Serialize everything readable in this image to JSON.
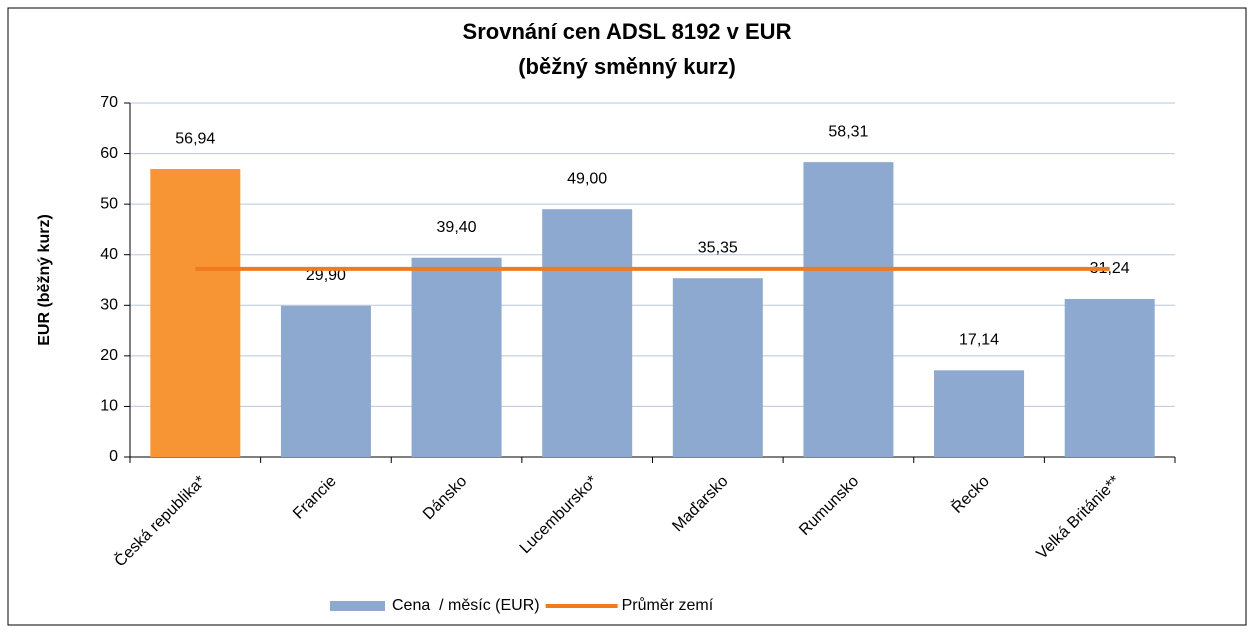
{
  "chart_data": {
    "type": "bar",
    "title": "Srovnání cen ADSL 8192 v EUR",
    "subtitle": "(běžný směnný kurz)",
    "y_label": "EUR (běžný kurz)",
    "categories": [
      "Česká republika*",
      "Francie",
      "Dánsko",
      "Lucembursko*",
      "Maďarsko",
      "Rumunsko",
      "Řecko",
      "Velká Británie**"
    ],
    "series": [
      {
        "name": "Cena  / měsíc (EUR)",
        "color": "#8ea9cf",
        "colors": [
          "#f79433",
          "#8ea9cf",
          "#8ea9cf",
          "#8ea9cf",
          "#8ea9cf",
          "#8ea9cf",
          "#8ea9cf",
          "#8ea9cf"
        ],
        "values": [
          56.94,
          29.9,
          39.4,
          49.0,
          35.35,
          58.31,
          17.14,
          31.24
        ],
        "value_labels": [
          "56,94",
          "29,90",
          "39,40",
          "49,00",
          "35,35",
          "58,31",
          "17,14",
          "31,24"
        ]
      },
      {
        "name": "Průměr zemí",
        "type": "line",
        "color": "#f07a1e",
        "values": [
          37.2,
          37.2,
          37.2,
          37.2,
          37.2,
          37.2,
          37.2,
          37.2
        ]
      }
    ],
    "ylim": [
      0,
      70
    ],
    "yticks": [
      0,
      10,
      20,
      30,
      40,
      50,
      60,
      70
    ],
    "grid": true,
    "legend": "bottom"
  }
}
